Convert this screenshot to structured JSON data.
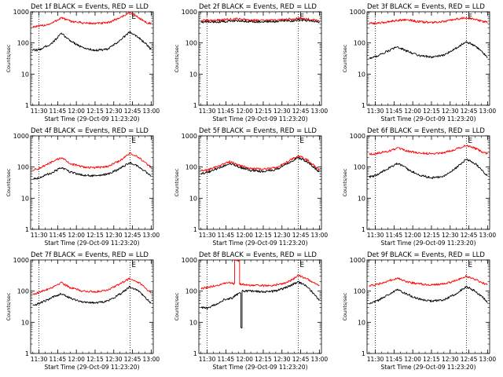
{
  "colors": {
    "events": "#000000",
    "lld": "#ff0000",
    "axis": "#000000",
    "background": "#ffffff"
  },
  "chart_data": [
    {
      "type": "line",
      "title": "Det 1f BLACK = Events, RED = LLD",
      "xlabel": "Start Time (29-Oct-09 11:23:20)",
      "ylabel": "Counts/sec",
      "yscale": "log",
      "ylim": [
        1,
        1000
      ],
      "xlim": [
        "11:23:20",
        "13:01:40"
      ],
      "x_ticks": [
        "11:30",
        "11:45",
        "12:00",
        "12:15",
        "12:30",
        "12:45",
        "13:00"
      ],
      "y_ticks": [
        "1",
        "10",
        "100",
        "1000"
      ],
      "markers": [
        {
          "time": "11:30",
          "label": ""
        },
        {
          "time": "12:43",
          "label": "E"
        }
      ],
      "series": [
        {
          "name": "LLD",
          "color": "#ff0000",
          "x": [
            "11:25",
            "11:30",
            "11:40",
            "11:48",
            "11:55",
            "12:05",
            "12:15",
            "12:25",
            "12:35",
            "12:43",
            "12:50",
            "12:56",
            "13:00"
          ],
          "y": [
            330,
            340,
            420,
            650,
            500,
            440,
            420,
            440,
            650,
            950,
            650,
            450,
            420
          ]
        },
        {
          "name": "Events",
          "color": "#000000",
          "x": [
            "11:25",
            "11:30",
            "11:40",
            "11:48",
            "11:55",
            "12:05",
            "12:15",
            "12:25",
            "12:35",
            "12:43",
            "12:50",
            "12:56",
            "13:00"
          ],
          "y": [
            58,
            60,
            95,
            200,
            120,
            70,
            58,
            62,
            120,
            230,
            150,
            90,
            62
          ]
        }
      ]
    },
    {
      "type": "line",
      "title": "Det 2f BLACK = Events, RED = LLD",
      "xlabel": "Start Time (29-Oct-09 11:23:20)",
      "ylabel": "Counts/sec",
      "yscale": "log",
      "ylim": [
        1,
        1000
      ],
      "xlim": [
        "11:23:20",
        "13:01:40"
      ],
      "x_ticks": [
        "11:30",
        "11:45",
        "12:00",
        "12:15",
        "12:30",
        "12:45",
        "13:00"
      ],
      "y_ticks": [
        "1",
        "10",
        "100",
        "1000"
      ],
      "markers": [
        {
          "time": "11:30",
          "label": ""
        },
        {
          "time": "12:43",
          "label": "E"
        }
      ],
      "series": [
        {
          "name": "LLD",
          "color": "#ff0000",
          "x": [
            "11:25",
            "11:35",
            "11:45",
            "11:55",
            "12:05",
            "12:15",
            "12:25",
            "12:35",
            "12:45",
            "12:55",
            "13:00"
          ],
          "y": [
            520,
            530,
            560,
            600,
            540,
            520,
            540,
            580,
            610,
            560,
            520
          ]
        },
        {
          "name": "Events",
          "color": "#000000",
          "x": [
            "11:25",
            "11:35",
            "11:45",
            "11:55",
            "12:05",
            "12:15",
            "12:25",
            "12:35",
            "12:45",
            "12:55",
            "13:00"
          ],
          "y": [
            470,
            470,
            490,
            520,
            490,
            470,
            490,
            510,
            530,
            500,
            470
          ]
        }
      ]
    },
    {
      "type": "line",
      "title": "Det 3f BLACK = Events, RED = LLD",
      "xlabel": "Start Time (29-Oct-09 11:23:20)",
      "ylabel": "Counts/sec",
      "yscale": "log",
      "ylim": [
        1,
        1000
      ],
      "xlim": [
        "11:23:20",
        "13:01:40"
      ],
      "x_ticks": [
        "11:30",
        "11:45",
        "12:00",
        "12:15",
        "12:30",
        "12:45",
        "13:00"
      ],
      "y_ticks": [
        "1",
        "10",
        "100",
        "1000"
      ],
      "markers": [
        {
          "time": "11:30",
          "label": ""
        },
        {
          "time": "12:43",
          "label": "E"
        }
      ],
      "series": [
        {
          "name": "LLD",
          "color": "#ff0000",
          "x": [
            "11:25",
            "11:35",
            "11:45",
            "11:55",
            "12:05",
            "12:15",
            "12:25",
            "12:35",
            "12:43",
            "12:50",
            "13:00"
          ],
          "y": [
            420,
            440,
            520,
            560,
            480,
            450,
            480,
            580,
            650,
            560,
            460
          ]
        },
        {
          "name": "Events",
          "color": "#000000",
          "x": [
            "11:25",
            "11:30",
            "11:40",
            "11:48",
            "11:55",
            "12:05",
            "12:15",
            "12:25",
            "12:35",
            "12:43",
            "12:50",
            "12:56",
            "13:00"
          ],
          "y": [
            32,
            36,
            55,
            75,
            55,
            40,
            35,
            40,
            70,
            110,
            80,
            50,
            34
          ]
        }
      ]
    },
    {
      "type": "line",
      "title": "Det 4f BLACK = Events, RED = LLD",
      "xlabel": "Start Time (29-Oct-09 11:23:20)",
      "ylabel": "Counts/sec",
      "yscale": "log",
      "ylim": [
        1,
        1000
      ],
      "xlim": [
        "11:23:20",
        "13:01:40"
      ],
      "x_ticks": [
        "11:30",
        "11:45",
        "12:00",
        "12:15",
        "12:30",
        "12:45",
        "13:00"
      ],
      "y_ticks": [
        "1",
        "10",
        "100",
        "1000"
      ],
      "markers": [
        {
          "time": "11:30",
          "label": ""
        },
        {
          "time": "12:43",
          "label": "E"
        }
      ],
      "series": [
        {
          "name": "LLD",
          "color": "#ff0000",
          "x": [
            "11:25",
            "11:30",
            "11:40",
            "11:48",
            "11:55",
            "12:05",
            "12:15",
            "12:25",
            "12:35",
            "12:43",
            "12:50",
            "12:56",
            "13:00"
          ],
          "y": [
            80,
            90,
            140,
            200,
            130,
            100,
            95,
            105,
            160,
            280,
            200,
            130,
            95
          ]
        },
        {
          "name": "Events",
          "color": "#000000",
          "x": [
            "11:25",
            "11:30",
            "11:40",
            "11:48",
            "11:55",
            "12:05",
            "12:15",
            "12:25",
            "12:35",
            "12:43",
            "12:50",
            "12:56",
            "13:00"
          ],
          "y": [
            42,
            45,
            65,
            95,
            70,
            55,
            52,
            58,
            90,
            140,
            100,
            70,
            50
          ]
        }
      ]
    },
    {
      "type": "line",
      "title": "Det 5f BLACK = Events, RED = LLD",
      "xlabel": "Start Time (29-Oct-09 11:23:20)",
      "ylabel": "Counts/sec",
      "yscale": "log",
      "ylim": [
        1,
        1000
      ],
      "xlim": [
        "11:23:20",
        "13:01:40"
      ],
      "x_ticks": [
        "11:30",
        "11:45",
        "12:00",
        "12:15",
        "12:30",
        "12:45",
        "13:00"
      ],
      "y_ticks": [
        "1",
        "10",
        "100",
        "1000"
      ],
      "markers": [
        {
          "time": "11:30",
          "label": ""
        },
        {
          "time": "12:43",
          "label": "E"
        }
      ],
      "series": [
        {
          "name": "LLD",
          "color": "#ff0000",
          "x": [
            "11:25",
            "11:30",
            "11:40",
            "11:48",
            "11:55",
            "12:05",
            "12:15",
            "12:25",
            "12:35",
            "12:43",
            "12:50",
            "12:56",
            "13:00"
          ],
          "y": [
            75,
            80,
            110,
            150,
            115,
            90,
            85,
            95,
            150,
            230,
            170,
            110,
            80
          ]
        },
        {
          "name": "Events",
          "color": "#000000",
          "x": [
            "11:25",
            "11:30",
            "11:40",
            "11:48",
            "11:55",
            "12:05",
            "12:15",
            "12:25",
            "12:35",
            "12:43",
            "12:50",
            "12:56",
            "13:00"
          ],
          "y": [
            62,
            66,
            95,
            130,
            100,
            78,
            72,
            82,
            130,
            200,
            150,
            95,
            68
          ]
        }
      ]
    },
    {
      "type": "line",
      "title": "Det 6f BLACK = Events, RED = LLD",
      "xlabel": "Start Time (29-Oct-09 11:23:20)",
      "ylabel": "Counts/sec",
      "yscale": "log",
      "ylim": [
        1,
        1000
      ],
      "xlim": [
        "11:23:20",
        "13:01:40"
      ],
      "x_ticks": [
        "11:30",
        "11:45",
        "12:00",
        "12:15",
        "12:30",
        "12:45",
        "13:00"
      ],
      "y_ticks": [
        "1",
        "10",
        "100",
        "1000"
      ],
      "markers": [
        {
          "time": "11:30",
          "label": ""
        },
        {
          "time": "12:43",
          "label": "E"
        }
      ],
      "series": [
        {
          "name": "LLD",
          "color": "#ff0000",
          "x": [
            "11:25",
            "11:30",
            "11:40",
            "11:48",
            "11:55",
            "12:05",
            "12:15",
            "12:25",
            "12:35",
            "12:43",
            "12:50",
            "12:56",
            "13:00"
          ],
          "y": [
            260,
            270,
            320,
            400,
            330,
            280,
            270,
            290,
            380,
            500,
            400,
            300,
            270
          ]
        },
        {
          "name": "Events",
          "color": "#000000",
          "x": [
            "11:25",
            "11:30",
            "11:40",
            "11:48",
            "11:55",
            "12:05",
            "12:15",
            "12:25",
            "12:35",
            "12:43",
            "12:50",
            "12:56",
            "13:00"
          ],
          "y": [
            48,
            52,
            90,
            130,
            90,
            55,
            45,
            50,
            95,
            180,
            130,
            75,
            50
          ]
        }
      ]
    },
    {
      "type": "line",
      "title": "Det 7f BLACK = Events, RED = LLD",
      "xlabel": "Start Time (29-Oct-09 11:23:20)",
      "ylabel": "Counts/sec",
      "yscale": "log",
      "ylim": [
        1,
        1000
      ],
      "xlim": [
        "11:23:20",
        "13:01:40"
      ],
      "x_ticks": [
        "11:30",
        "11:45",
        "12:00",
        "12:15",
        "12:30",
        "12:45",
        "13:00"
      ],
      "y_ticks": [
        "1",
        "10",
        "100",
        "1000"
      ],
      "markers": [
        {
          "time": "11:30",
          "label": ""
        },
        {
          "time": "12:43",
          "label": "E"
        }
      ],
      "series": [
        {
          "name": "LLD",
          "color": "#ff0000",
          "x": [
            "11:25",
            "11:30",
            "11:40",
            "11:48",
            "11:55",
            "12:05",
            "12:15",
            "12:25",
            "12:35",
            "12:43",
            "12:50",
            "12:56",
            "13:00"
          ],
          "y": [
            80,
            90,
            130,
            190,
            130,
            100,
            95,
            110,
            170,
            260,
            190,
            120,
            90
          ]
        },
        {
          "name": "Events",
          "color": "#000000",
          "x": [
            "11:25",
            "11:30",
            "11:40",
            "11:48",
            "11:55",
            "12:05",
            "12:15",
            "12:25",
            "12:35",
            "12:43",
            "12:50",
            "12:56",
            "13:00"
          ],
          "y": [
            35,
            40,
            60,
            85,
            60,
            45,
            42,
            48,
            80,
            140,
            100,
            60,
            40
          ]
        }
      ]
    },
    {
      "type": "line",
      "title": "Det 8f BLACK = Events, RED = LLD",
      "xlabel": "Start Time (29-Oct-09 11:23:20)",
      "ylabel": "Counts/sec",
      "yscale": "log",
      "ylim": [
        1,
        1000
      ],
      "xlim": [
        "11:23:20",
        "13:01:40"
      ],
      "x_ticks": [
        "11:30",
        "11:45",
        "12:00",
        "12:15",
        "12:30",
        "12:45",
        "13:00"
      ],
      "y_ticks": [
        "1",
        "10",
        "100",
        "1000"
      ],
      "markers": [
        {
          "time": "11:30",
          "label": ""
        },
        {
          "time": "12:43",
          "label": "E"
        }
      ],
      "series": [
        {
          "name": "LLD",
          "color": "#ff0000",
          "x": [
            "11:25",
            "11:30",
            "11:40",
            "11:48",
            "11:52",
            "11:52",
            "11:56",
            "11:56",
            "12:00",
            "12:10",
            "12:20",
            "12:30",
            "12:37",
            "12:43",
            "12:50",
            "12:56",
            "13:00"
          ],
          "y": [
            120,
            130,
            160,
            190,
            170,
            1000,
            1000,
            170,
            160,
            150,
            150,
            170,
            220,
            320,
            250,
            180,
            150
          ]
        },
        {
          "name": "Events",
          "color": "#000000",
          "x": [
            "11:25",
            "11:30",
            "11:38",
            "11:44",
            "11:50",
            "11:53",
            "11:55",
            "11:57",
            "11:57",
            "11:58",
            "11:58",
            "12:05",
            "12:15",
            "12:25",
            "12:35",
            "12:43",
            "12:50",
            "12:56",
            "13:00"
          ],
          "y": [
            30,
            28,
            40,
            55,
            60,
            75,
            80,
            90,
            7,
            7,
            100,
            100,
            95,
            100,
            140,
            200,
            140,
            80,
            50
          ]
        }
      ]
    },
    {
      "type": "line",
      "title": "Det 9f BLACK = Events, RED = LLD",
      "xlabel": "Start Time (29-Oct-09 11:23:20)",
      "ylabel": "Counts/sec",
      "yscale": "log",
      "ylim": [
        1,
        1000
      ],
      "xlim": [
        "11:23:20",
        "13:01:40"
      ],
      "x_ticks": [
        "11:30",
        "11:45",
        "12:00",
        "12:15",
        "12:30",
        "12:45",
        "13:00"
      ],
      "y_ticks": [
        "1",
        "10",
        "100",
        "1000"
      ],
      "markers": [
        {
          "time": "11:30",
          "label": ""
        },
        {
          "time": "12:43",
          "label": "E"
        }
      ],
      "series": [
        {
          "name": "LLD",
          "color": "#ff0000",
          "x": [
            "11:25",
            "11:30",
            "11:40",
            "11:48",
            "11:55",
            "12:05",
            "12:15",
            "12:25",
            "12:35",
            "12:43",
            "12:50",
            "12:56",
            "13:00"
          ],
          "y": [
            150,
            160,
            210,
            260,
            200,
            170,
            160,
            170,
            220,
            300,
            240,
            180,
            160
          ]
        },
        {
          "name": "Events",
          "color": "#000000",
          "x": [
            "11:25",
            "11:30",
            "11:40",
            "11:48",
            "11:55",
            "12:05",
            "12:15",
            "12:25",
            "12:35",
            "12:43",
            "12:50",
            "12:56",
            "13:00"
          ],
          "y": [
            40,
            45,
            75,
            110,
            80,
            55,
            48,
            52,
            85,
            140,
            100,
            65,
            45
          ]
        }
      ]
    }
  ]
}
